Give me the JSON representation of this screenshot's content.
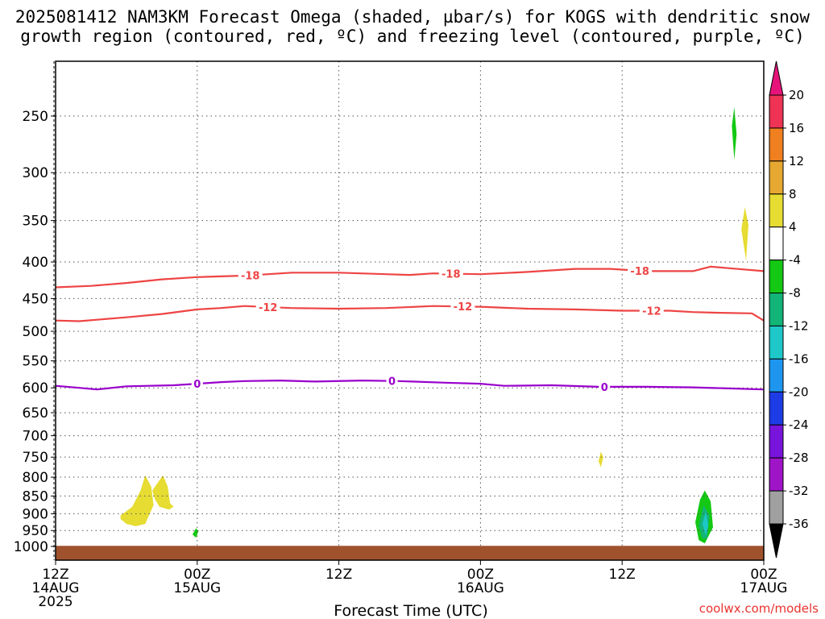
{
  "title_line1": "2025081412 NAM3KM Forecast Omega (shaded, µbar/s) for KOGS with dendritic snow",
  "title_line2": "growth region (contoured, red, ºC) and freezing level (contoured, purple, ºC)",
  "credit": "coolwx.com/models",
  "chart_data": {
    "type": "time-height cross section",
    "x_label": "Forecast Time (UTC)",
    "x_ticks": [
      {
        "h": 0,
        "lines": [
          "12Z",
          "14AUG",
          "2025"
        ]
      },
      {
        "h": 12,
        "lines": [
          "00Z",
          "15AUG"
        ]
      },
      {
        "h": 24,
        "lines": [
          "12Z"
        ]
      },
      {
        "h": 36,
        "lines": [
          "00Z",
          "16AUG"
        ]
      },
      {
        "h": 48,
        "lines": [
          "12Z"
        ]
      },
      {
        "h": 60,
        "lines": [
          "00Z",
          "17AUG"
        ]
      }
    ],
    "x_range_hours": [
      0,
      60
    ],
    "y_axis": "pressure (hPa), log scale, inverted",
    "y_range": [
      1050,
      200
    ],
    "y_ticks": [
      250,
      300,
      350,
      400,
      450,
      500,
      550,
      600,
      650,
      700,
      750,
      800,
      850,
      900,
      950,
      1000
    ],
    "grid": true,
    "contours": [
      {
        "level": -18,
        "color": "#ee4444",
        "label_hours": [
          16.5,
          33.5,
          49.5
        ],
        "points": [
          [
            0,
            434
          ],
          [
            3,
            432
          ],
          [
            6,
            428
          ],
          [
            9,
            423
          ],
          [
            12,
            420
          ],
          [
            14,
            419
          ],
          [
            16,
            418
          ],
          [
            18,
            416
          ],
          [
            20,
            414
          ],
          [
            24,
            414
          ],
          [
            28,
            416
          ],
          [
            30,
            417
          ],
          [
            32,
            415
          ],
          [
            36,
            416
          ],
          [
            40,
            413
          ],
          [
            44,
            409
          ],
          [
            47,
            409
          ],
          [
            50,
            412
          ],
          [
            54,
            412
          ],
          [
            55.5,
            406
          ],
          [
            57,
            408
          ],
          [
            60,
            412
          ]
        ]
      },
      {
        "level": -12,
        "color": "#ee4444",
        "label_hours": [
          18,
          34.5,
          50.5
        ],
        "points": [
          [
            0,
            483
          ],
          [
            2,
            484
          ],
          [
            6,
            478
          ],
          [
            9,
            473
          ],
          [
            12,
            466
          ],
          [
            14,
            464
          ],
          [
            16,
            461
          ],
          [
            20,
            464
          ],
          [
            24,
            465
          ],
          [
            28,
            464
          ],
          [
            32,
            461
          ],
          [
            36,
            462
          ],
          [
            40,
            465
          ],
          [
            44,
            466
          ],
          [
            48,
            468
          ],
          [
            52,
            468
          ],
          [
            54,
            470
          ],
          [
            56,
            471
          ],
          [
            59,
            472
          ],
          [
            60,
            483
          ]
        ]
      },
      {
        "level": 0,
        "color": "#9900cc",
        "label_hours": [
          12,
          28.5,
          46.5
        ],
        "points": [
          [
            0,
            596
          ],
          [
            2,
            600
          ],
          [
            3.5,
            603
          ],
          [
            6,
            597
          ],
          [
            10,
            595
          ],
          [
            12,
            592
          ],
          [
            14,
            589
          ],
          [
            16,
            587
          ],
          [
            19,
            586
          ],
          [
            22,
            588
          ],
          [
            26,
            586
          ],
          [
            29,
            587
          ],
          [
            33,
            590
          ],
          [
            36,
            592
          ],
          [
            38,
            596
          ],
          [
            42,
            595
          ],
          [
            46,
            598
          ],
          [
            50,
            598
          ],
          [
            54,
            599
          ],
          [
            57,
            601
          ],
          [
            60,
            603
          ]
        ]
      }
    ],
    "omega_shaded_regions": [
      {
        "value_range": [
          4,
          8
        ],
        "color": "#e6dc32",
        "points": [
          [
            5.5,
            905
          ],
          [
            6.5,
            880
          ],
          [
            7.2,
            835
          ],
          [
            7.6,
            795
          ],
          [
            8.1,
            825
          ],
          [
            8.3,
            875
          ],
          [
            7.6,
            930
          ],
          [
            6.8,
            937
          ],
          [
            6.0,
            930
          ],
          [
            5.5,
            915
          ]
        ]
      },
      {
        "value_range": [
          4,
          8
        ],
        "color": "#e6dc32",
        "points": [
          [
            8.2,
            835
          ],
          [
            9.1,
            795
          ],
          [
            9.5,
            825
          ],
          [
            9.7,
            870
          ],
          [
            10.0,
            880
          ],
          [
            9.6,
            888
          ],
          [
            8.8,
            880
          ],
          [
            8.4,
            858
          ]
        ]
      },
      {
        "value_range": [
          -8,
          -4
        ],
        "color": "#14c814",
        "points": [
          [
            11.6,
            962
          ],
          [
            11.9,
            943
          ],
          [
            12.1,
            952
          ],
          [
            11.9,
            972
          ]
        ]
      },
      {
        "value_range": [
          4,
          8
        ],
        "color": "#e6dc32",
        "points": [
          [
            46.0,
            760
          ],
          [
            46.2,
            737
          ],
          [
            46.4,
            750
          ],
          [
            46.2,
            775
          ]
        ]
      },
      {
        "value_range": [
          -8,
          -4
        ],
        "color": "#14c814",
        "points": [
          [
            54.2,
            925
          ],
          [
            54.6,
            860
          ],
          [
            55.0,
            835
          ],
          [
            55.5,
            865
          ],
          [
            55.7,
            940
          ],
          [
            55.0,
            990
          ],
          [
            54.5,
            980
          ]
        ]
      },
      {
        "value_range": [
          -12,
          -8
        ],
        "color": "#12b478",
        "points": [
          [
            54.5,
            935
          ],
          [
            54.9,
            875
          ],
          [
            55.4,
            905
          ],
          [
            55.2,
            975
          ],
          [
            54.8,
            975
          ]
        ]
      },
      {
        "value_range": [
          -16,
          -12
        ],
        "color": "#1ec8c8",
        "points": [
          [
            54.8,
            930
          ],
          [
            55.1,
            895
          ],
          [
            55.3,
            935
          ],
          [
            55.1,
            965
          ]
        ]
      },
      {
        "value_range": [
          -8,
          -4
        ],
        "color": "#14c814",
        "points": [
          [
            57.3,
            258
          ],
          [
            57.5,
            243
          ],
          [
            57.7,
            265
          ],
          [
            57.5,
            288
          ]
        ]
      },
      {
        "value_range": [
          4,
          8
        ],
        "color": "#e6dc32",
        "points": [
          [
            58.1,
            360
          ],
          [
            58.4,
            335
          ],
          [
            58.7,
            355
          ],
          [
            58.5,
            398
          ]
        ]
      }
    ],
    "terrain_surface": {
      "color": "#a0522d",
      "top_hpa": 998
    },
    "colorbar": {
      "ticks": [
        20,
        16,
        12,
        8,
        4,
        -4,
        -8,
        -12,
        -16,
        -20,
        -24,
        -28,
        -32,
        -36
      ],
      "segments": [
        {
          "from": 20,
          "to": 16,
          "color": "#ee3355"
        },
        {
          "from": 16,
          "to": 12,
          "color": "#f07f20"
        },
        {
          "from": 12,
          "to": 8,
          "color": "#e6a830"
        },
        {
          "from": 8,
          "to": 4,
          "color": "#e6dc32"
        },
        {
          "from": 4,
          "to": -4,
          "color": "#ffffff"
        },
        {
          "from": -4,
          "to": -8,
          "color": "#14c814"
        },
        {
          "from": -8,
          "to": -12,
          "color": "#12b478"
        },
        {
          "from": -12,
          "to": -16,
          "color": "#1ec8c8"
        },
        {
          "from": -16,
          "to": -20,
          "color": "#1e96f0"
        },
        {
          "from": -20,
          "to": -24,
          "color": "#1e3ce6"
        },
        {
          "from": -24,
          "to": -28,
          "color": "#7814dc"
        },
        {
          "from": -28,
          "to": -32,
          "color": "#a014c8"
        },
        {
          "from": -32,
          "to": -36,
          "color": "#a0a0a0"
        }
      ],
      "top_arrow_color": "#e6147a",
      "bottom_arrow_color": "#000000"
    }
  }
}
